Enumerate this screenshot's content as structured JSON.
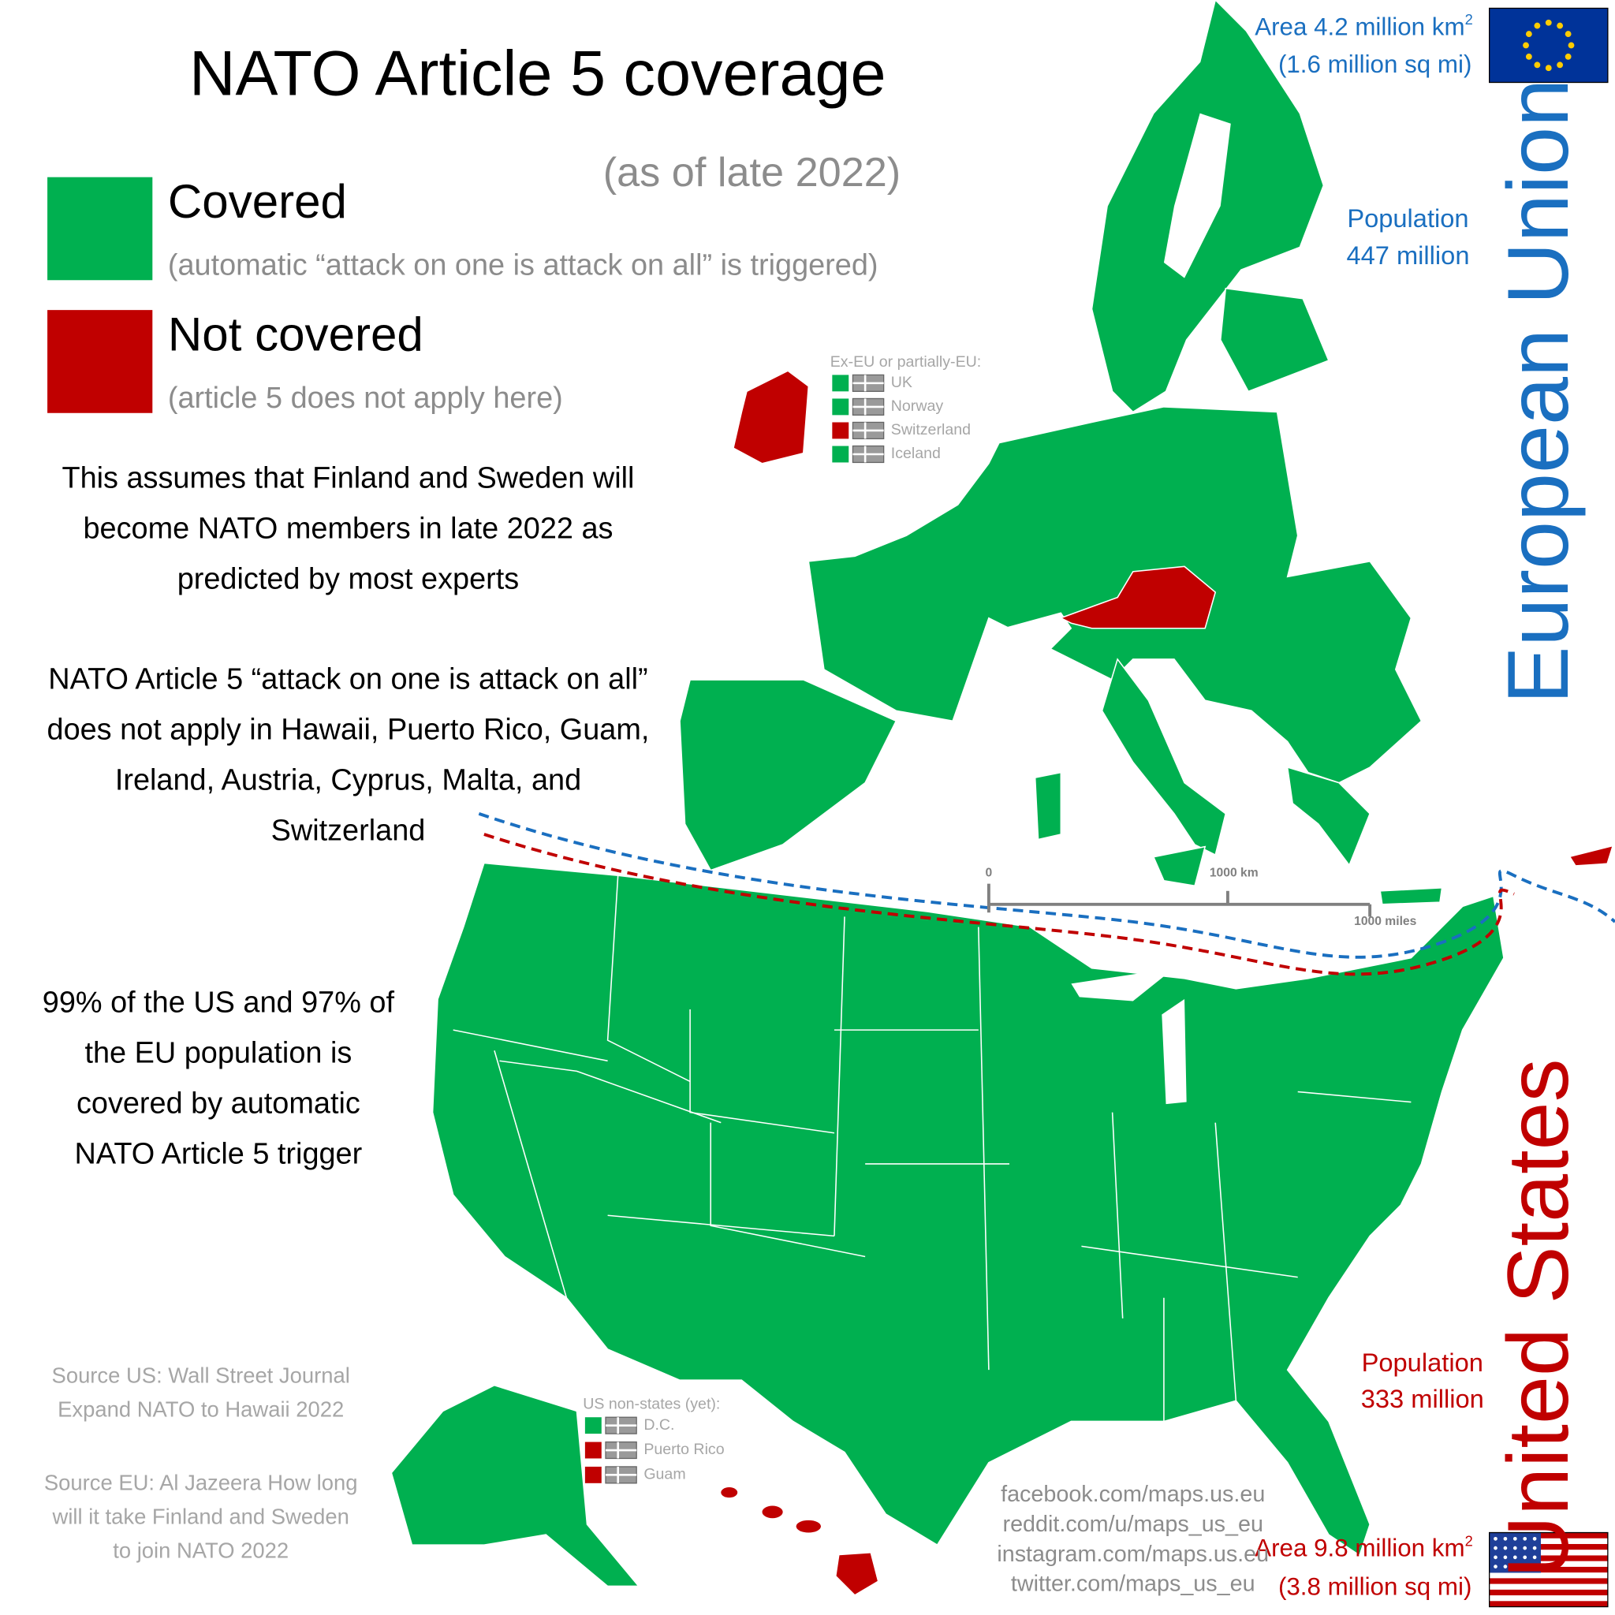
{
  "title": "NATO Article 5 coverage",
  "subtitle": "(as of late 2022)",
  "colors": {
    "covered": "#00b050",
    "not_covered": "#c00000",
    "eu": "#1a6fc0",
    "us": "#c00000"
  },
  "legend": [
    {
      "label": "Covered",
      "note": "(automatic “attack on one is attack on all” is triggered)",
      "covered": true
    },
    {
      "label": "Not covered",
      "note": "(article 5 does not apply here)",
      "covered": false
    }
  ],
  "notes": [
    [
      "This assumes that Finland and Sweden will",
      "become NATO members in late 2022 as",
      "predicted by most experts"
    ],
    [
      "NATO Article 5 “attack on one is attack on all”",
      "does not apply in Hawaii, Puerto Rico, Guam,",
      "Ireland, Austria, Cyprus, Malta, and",
      "Switzerland"
    ],
    [
      "99% of the US and 97% of",
      "the EU population is",
      "covered by automatic",
      "NATO Article 5 trigger"
    ]
  ],
  "ex_eu": {
    "title": "Ex-EU or partially-EU:",
    "items": [
      {
        "name": "UK",
        "covered": true
      },
      {
        "name": "Norway",
        "covered": true
      },
      {
        "name": "Switzerland",
        "covered": false
      },
      {
        "name": "Iceland",
        "covered": true
      }
    ]
  },
  "us_non_states": {
    "title": "US non-states (yet):",
    "items": [
      {
        "name": "D.C.",
        "covered": true
      },
      {
        "name": "Puerto Rico",
        "covered": false
      },
      {
        "name": "Guam",
        "covered": false
      }
    ]
  },
  "eu": {
    "name": "European Union",
    "area": "Area 4.2 million km",
    "area_sup": "2",
    "area_alt": "(1.6 million sq mi)",
    "population": [
      "Population",
      "447 million"
    ]
  },
  "us": {
    "name": "United States",
    "area": "Area 9.8 million km",
    "area_sup": "2",
    "area_alt": "(3.8 million sq mi)",
    "population": [
      "Population",
      "333 million"
    ]
  },
  "scale": {
    "zero": "0",
    "km": "1000 km",
    "miles": "1000 miles"
  },
  "sources": [
    [
      "Source US: Wall Street Journal",
      "Expand NATO to Hawaii 2022"
    ],
    [
      "Source EU: Al Jazeera How long",
      "will it take Finland and Sweden",
      "to join NATO 2022"
    ]
  ],
  "social": [
    "facebook.com/maps.us.eu",
    "reddit.com/u/maps_us_eu",
    "instagram.com/maps.us.eu",
    "twitter.com/maps_us_eu"
  ]
}
